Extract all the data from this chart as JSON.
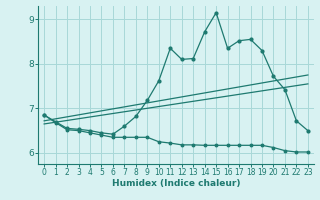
{
  "xlabel": "Humidex (Indice chaleur)",
  "bg_color": "#d8f2f2",
  "grid_color": "#a8d8d8",
  "line_color": "#1e7a70",
  "xlim": [
    -0.5,
    23.5
  ],
  "ylim": [
    5.75,
    9.3
  ],
  "xticks": [
    0,
    1,
    2,
    3,
    4,
    5,
    6,
    7,
    8,
    9,
    10,
    11,
    12,
    13,
    14,
    15,
    16,
    17,
    18,
    19,
    20,
    21,
    22,
    23
  ],
  "yticks": [
    6,
    7,
    8,
    9
  ],
  "main_x": [
    0,
    1,
    2,
    3,
    4,
    5,
    6,
    7,
    8,
    9,
    10,
    11,
    12,
    13,
    14,
    15,
    16,
    17,
    18,
    19,
    20,
    21,
    22,
    23
  ],
  "main_y": [
    6.85,
    6.7,
    6.55,
    6.53,
    6.5,
    6.45,
    6.42,
    6.6,
    6.82,
    7.18,
    7.62,
    8.35,
    8.1,
    8.12,
    8.72,
    9.15,
    8.35,
    8.52,
    8.55,
    8.3,
    7.72,
    7.42,
    6.72,
    6.5
  ],
  "line2_x": [
    0,
    23
  ],
  "line2_y": [
    6.72,
    7.75
  ],
  "line3_x": [
    0,
    23
  ],
  "line3_y": [
    6.65,
    7.55
  ],
  "bottom_x": [
    0,
    1,
    2,
    3,
    4,
    5,
    6,
    7,
    8,
    9,
    10,
    11,
    12,
    13,
    14,
    15,
    16,
    17,
    18,
    19,
    20,
    21,
    22,
    23
  ],
  "bottom_y": [
    6.85,
    6.68,
    6.52,
    6.5,
    6.45,
    6.4,
    6.35,
    6.35,
    6.35,
    6.35,
    6.25,
    6.22,
    6.18,
    6.18,
    6.17,
    6.17,
    6.17,
    6.17,
    6.17,
    6.17,
    6.12,
    6.05,
    6.02,
    6.02
  ]
}
